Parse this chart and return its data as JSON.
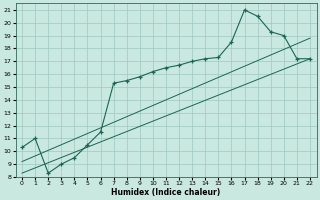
{
  "xlabel": "Humidex (Indice chaleur)",
  "xlim": [
    -0.5,
    22.5
  ],
  "ylim": [
    8,
    21.5
  ],
  "xticks": [
    0,
    1,
    2,
    3,
    4,
    5,
    6,
    7,
    8,
    9,
    10,
    11,
    12,
    13,
    14,
    15,
    16,
    17,
    18,
    19,
    20,
    21,
    22
  ],
  "yticks": [
    8,
    9,
    10,
    11,
    12,
    13,
    14,
    15,
    16,
    17,
    18,
    19,
    20,
    21
  ],
  "bg_color": "#c8e8e0",
  "grid_color": "#a0c8c0",
  "line_color": "#1a6655",
  "main_x": [
    0,
    1,
    2,
    3,
    4,
    5,
    6,
    7,
    8,
    9,
    10,
    11,
    12,
    13,
    14,
    15,
    16,
    17,
    18,
    19,
    20,
    21,
    22
  ],
  "main_y": [
    10.3,
    11.0,
    8.3,
    9.0,
    9.5,
    10.5,
    11.5,
    15.3,
    15.5,
    15.8,
    16.2,
    16.5,
    16.7,
    17.0,
    17.2,
    17.3,
    18.5,
    21.0,
    20.5,
    19.3,
    19.0,
    17.2,
    17.2
  ],
  "line2_x": [
    0,
    22
  ],
  "line2_y": [
    8.3,
    17.2
  ],
  "line3_x": [
    0,
    22
  ],
  "line3_y": [
    9.2,
    18.8
  ]
}
